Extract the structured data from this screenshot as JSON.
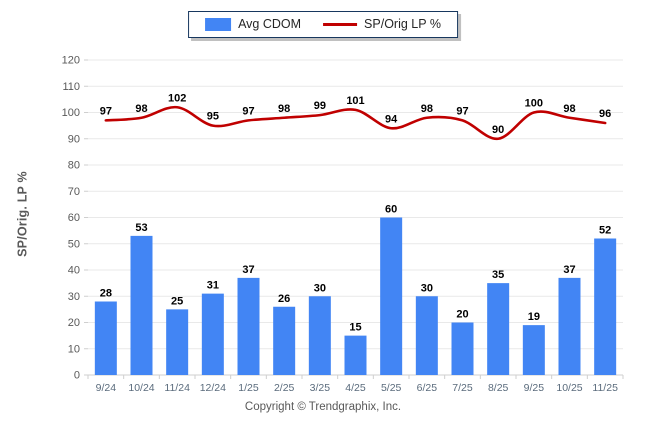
{
  "chart_data": {
    "type": "bar+line",
    "title": "",
    "categories": [
      "9/24",
      "10/24",
      "11/24",
      "12/24",
      "1/25",
      "2/25",
      "3/25",
      "4/25",
      "5/25",
      "6/25",
      "7/25",
      "8/25",
      "9/25",
      "10/25",
      "11/25"
    ],
    "series": [
      {
        "name": "Avg CDOM",
        "type": "bar",
        "color": "#4285F4",
        "values": [
          28,
          53,
          25,
          31,
          37,
          26,
          30,
          15,
          60,
          30,
          20,
          35,
          19,
          37,
          52
        ]
      },
      {
        "name": "SP/Orig LP %",
        "type": "line",
        "color": "#C00000",
        "values": [
          97,
          98,
          102,
          95,
          97,
          98,
          99,
          101,
          94,
          98,
          97,
          90,
          100,
          98,
          96
        ]
      }
    ],
    "xlabel": "",
    "ylabel": "SP/Orig. LP %",
    "ylim": [
      0,
      120
    ],
    "ytick_step": 10,
    "grid": true,
    "legend_position": "top-center",
    "data_labels": true
  },
  "style": {
    "background": "#ffffff",
    "grid_color": "#e9e9e9",
    "axis_line_color": "#cfcfcf",
    "ytick_label_color": "#595959",
    "xtick_label_color": "#5a6b7c",
    "data_label_color": "#000000",
    "legend_border_color": "#17375E",
    "legend_text_color": "#262626"
  },
  "footer": {
    "copyright_text": "Copyright © Trendgraphix, Inc."
  }
}
